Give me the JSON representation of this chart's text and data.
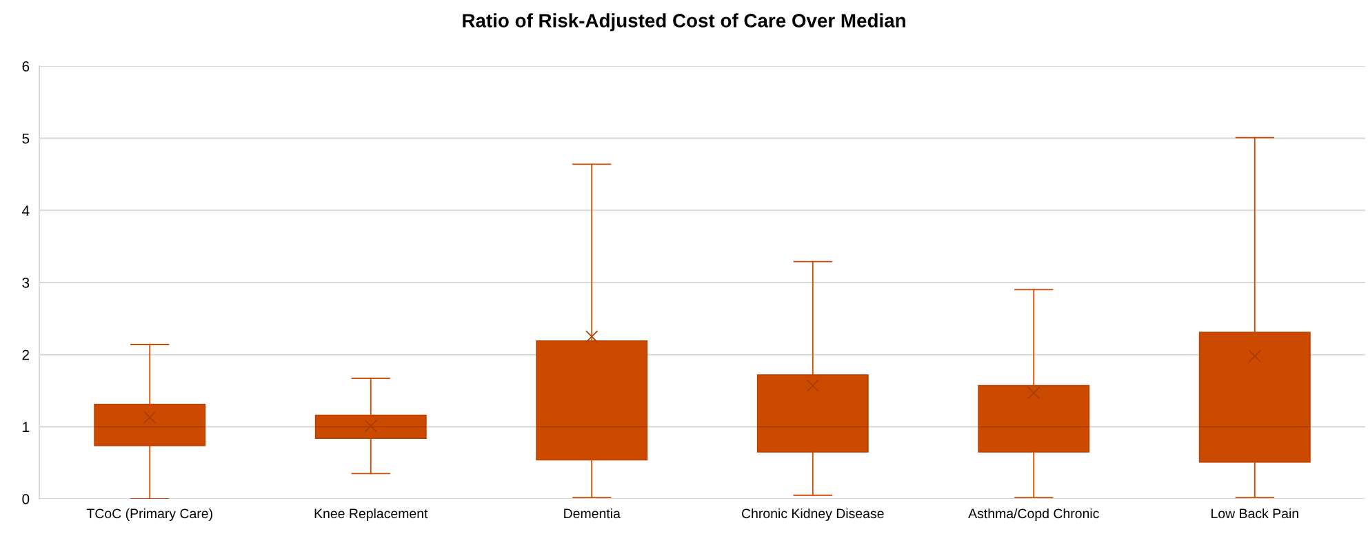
{
  "chart_data": {
    "type": "box",
    "title": "Ratio of Risk-Adjusted Cost of Care Over Median",
    "categories": [
      "TCoC (Primary Care)",
      "Knee Replacement",
      "Dementia",
      "Chronic Kidney Disease",
      "Asthma/Copd Chronic",
      "Low Back Pain"
    ],
    "boxes": [
      {
        "low": 0,
        "q1": 0.74,
        "median": 1.0,
        "q3": 1.31,
        "high": 2.14,
        "mean": 1.13
      },
      {
        "low": 0.35,
        "q1": 0.84,
        "median": 1.0,
        "q3": 1.16,
        "high": 1.67,
        "mean": 1.01
      },
      {
        "low": 0.02,
        "q1": 0.54,
        "median": 1.0,
        "q3": 2.19,
        "high": 4.64,
        "mean": 2.25
      },
      {
        "low": 0.05,
        "q1": 0.65,
        "median": 1.0,
        "q3": 1.72,
        "high": 3.29,
        "mean": 1.57
      },
      {
        "low": 0.02,
        "q1": 0.65,
        "median": 1.0,
        "q3": 1.57,
        "high": 2.9,
        "mean": 1.47
      },
      {
        "low": 0.02,
        "q1": 0.51,
        "median": 1.0,
        "q3": 2.31,
        "high": 5.01,
        "mean": 1.98
      }
    ],
    "color": "#cc4a00",
    "ylim": [
      0,
      6
    ],
    "yticks": [
      0,
      1,
      2,
      3,
      4,
      5,
      6
    ],
    "grid": "y",
    "legend": false
  }
}
